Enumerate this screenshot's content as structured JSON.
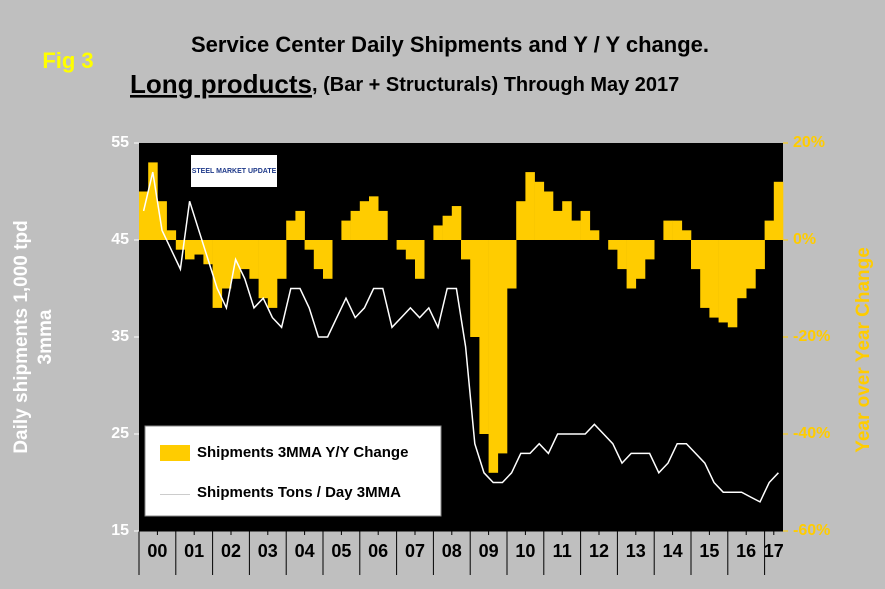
{
  "chart_data": {
    "type": "combo",
    "fig_label": "Fig 3",
    "title": "Service Center Daily Shipments and Y / Y change.",
    "subtitle_emphasis": "Long products",
    "subtitle": ", (Bar + Structurals) Through May 2017",
    "logo": "STEEL MARKET UPDATE",
    "y_label": [
      "Daily shipments 1,000 tpd",
      "3mma"
    ],
    "y2_label": "Year over Year Change",
    "x": [
      2000,
      2000.25,
      2000.5,
      2000.75,
      2001,
      2001.25,
      2001.5,
      2001.75,
      2002,
      2002.25,
      2002.5,
      2002.75,
      2003,
      2003.25,
      2003.5,
      2003.75,
      2004,
      2004.25,
      2004.5,
      2004.75,
      2005,
      2005.25,
      2005.5,
      2005.75,
      2006,
      2006.25,
      2006.5,
      2006.75,
      2007,
      2007.25,
      2007.5,
      2007.75,
      2008,
      2008.25,
      2008.5,
      2008.75,
      2009,
      2009.25,
      2009.5,
      2009.75,
      2010,
      2010.25,
      2010.5,
      2010.75,
      2011,
      2011.25,
      2011.5,
      2011.75,
      2012,
      2012.25,
      2012.5,
      2012.75,
      2013,
      2013.25,
      2013.5,
      2013.75,
      2014,
      2014.25,
      2014.5,
      2014.75,
      2015,
      2015.25,
      2015.5,
      2015.75,
      2016,
      2016.25,
      2016.5,
      2016.75,
      2017,
      2017.25
    ],
    "xlim": [
      2000,
      2017.5
    ],
    "xticks": [
      {
        "value": 2000.5,
        "label": "00"
      },
      {
        "value": 2001.5,
        "label": "01"
      },
      {
        "value": 2002.5,
        "label": "02"
      },
      {
        "value": 2003.5,
        "label": "03"
      },
      {
        "value": 2004.5,
        "label": "04"
      },
      {
        "value": 2005.5,
        "label": "05"
      },
      {
        "value": 2006.5,
        "label": "06"
      },
      {
        "value": 2007.5,
        "label": "07"
      },
      {
        "value": 2008.5,
        "label": "08"
      },
      {
        "value": 2009.5,
        "label": "09"
      },
      {
        "value": 2010.5,
        "label": "10"
      },
      {
        "value": 2011.5,
        "label": "11"
      },
      {
        "value": 2012.5,
        "label": "12"
      },
      {
        "value": 2013.5,
        "label": "13"
      },
      {
        "value": 2014.5,
        "label": "14"
      },
      {
        "value": 2015.5,
        "label": "15"
      },
      {
        "value": 2016.5,
        "label": "16"
      },
      {
        "value": 2017.25,
        "label": "17"
      }
    ],
    "ylim": [
      15,
      55
    ],
    "yticks": [
      15,
      25,
      35,
      45,
      55
    ],
    "y2lim": [
      -60,
      20
    ],
    "y2ticks": [
      {
        "value": -60,
        "label": "-60%"
      },
      {
        "value": -40,
        "label": "-40%"
      },
      {
        "value": -20,
        "label": "-20%"
      },
      {
        "value": 0,
        "label": "0%"
      },
      {
        "value": 20,
        "label": "20%"
      }
    ],
    "series": [
      {
        "name": "Shipments 3MMA Y/Y Change",
        "color": "#ffcc00",
        "type": "bar",
        "axis": "y2",
        "values": [
          10,
          16,
          8,
          2,
          -2,
          -4,
          -3,
          -5,
          -14,
          -10,
          -8,
          -6,
          -8,
          -12,
          -14,
          -8,
          4,
          6,
          -2,
          -6,
          -8,
          0,
          4,
          6,
          8,
          9,
          6,
          0,
          -2,
          -4,
          -8,
          0,
          3,
          5,
          7,
          -4,
          -20,
          -40,
          -48,
          -44,
          -10,
          8,
          14,
          12,
          10,
          6,
          8,
          4,
          6,
          2,
          0,
          -2,
          -6,
          -10,
          -8,
          -4,
          0,
          4,
          4,
          2,
          -6,
          -14,
          -16,
          -17,
          -18,
          -12,
          -10,
          -6,
          4,
          12
        ]
      },
      {
        "name": "Shipments Tons / Day 3MMA",
        "color": "#ffffff",
        "type": "line",
        "values": [
          48,
          52,
          46,
          44,
          42,
          49,
          46,
          43,
          40,
          38,
          43,
          41,
          38,
          39,
          37,
          36,
          40,
          40,
          38,
          35,
          35,
          37,
          39,
          37,
          38,
          40,
          40,
          36,
          37,
          38,
          37,
          38,
          36,
          40,
          40,
          34,
          24,
          21,
          20,
          20,
          21,
          23,
          23,
          24,
          23,
          25,
          25,
          25,
          25,
          26,
          25,
          24,
          22,
          23,
          23,
          23,
          21,
          22,
          24,
          24,
          23,
          22,
          20,
          19,
          19,
          19,
          18.5,
          18,
          20,
          21
        ]
      }
    ]
  }
}
